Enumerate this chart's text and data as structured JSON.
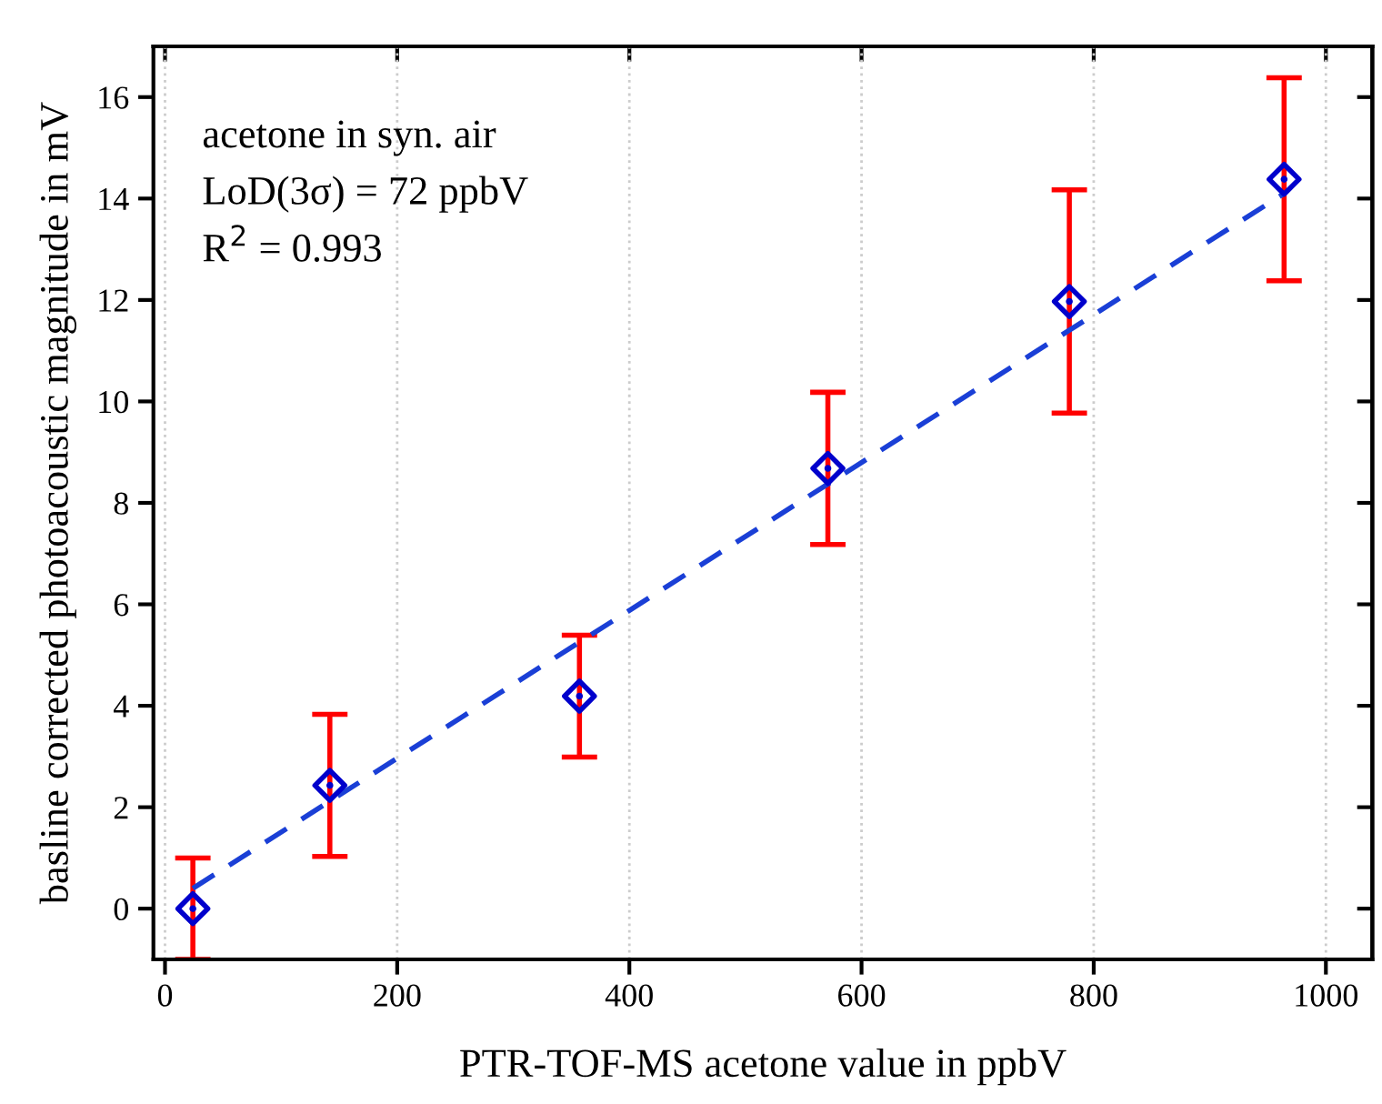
{
  "chart_data": {
    "type": "scatter",
    "xlabel": "PTR-TOF-MS acetone value in ppbV",
    "ylabel": "basline corrected photoacoustic magnitude in mV",
    "xlim": [
      -10,
      1040
    ],
    "xticks": [
      0,
      200,
      400,
      600,
      800,
      1000
    ],
    "ylim": [
      -1,
      17
    ],
    "yticks": [
      0,
      2,
      4,
      6,
      8,
      10,
      12,
      14,
      16
    ],
    "grid": "x",
    "legend": false,
    "annotations": [
      "acetone in syn. air",
      "LoD(3σ) = 72 ppbV",
      "R$^{2}$ = 0.993"
    ],
    "series": [
      {
        "marker": "diamond",
        "color": "#0000cc",
        "x": [
          24,
          142,
          357,
          571,
          779,
          964
        ],
        "values": [
          0,
          2.43,
          4.19,
          8.68,
          11.97,
          14.38
        ],
        "errors": [
          1,
          1.4,
          1.2,
          1.5,
          2.2,
          2.0
        ]
      },
      {
        "type": "line",
        "color": "#1a3fd6",
        "line_style": "dashed",
        "x": [
          24,
          964
        ],
        "values": [
          0.4,
          14.1
        ]
      }
    ]
  }
}
